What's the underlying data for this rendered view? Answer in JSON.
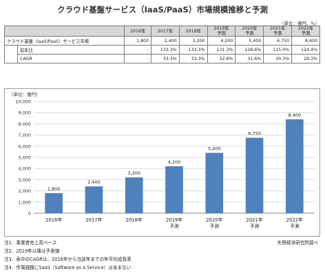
{
  "title": "クラウド基盤サービス（IaaS/PaaS）市場規模推移と予測",
  "units": "（単位：億円、%）",
  "table": {
    "header": [
      "",
      "",
      "2016年",
      "2017年",
      "2018年",
      "2019年\n予測",
      "2020年\n予測",
      "2021年\n予測",
      "2022年\n予測"
    ],
    "rows": [
      {
        "label": "クラウド基盤（IaaS/PaaS）サービス市場",
        "sub": "",
        "cells": [
          "1,800",
          "2,400",
          "3,200",
          "4,200",
          "5,400",
          "6,750",
          "8,400"
        ]
      },
      {
        "label": "",
        "sub": "前年比",
        "cells": [
          "-",
          "133.3%",
          "133.3%",
          "131.3%",
          "128.6%",
          "125.0%",
          "124.4%"
        ]
      },
      {
        "label": "",
        "sub": "CAGR",
        "cells": [
          "-",
          "33.3%",
          "33.3%",
          "32.6%",
          "31.6%",
          "30.3%",
          "29.3%"
        ]
      }
    ]
  },
  "chart_data": {
    "type": "bar",
    "title": "",
    "unit_label": "（単位：億円）",
    "categories": [
      "2016年",
      "2017年",
      "2018年",
      "2019年\n予測",
      "2020年\n予測",
      "2021年\n予測",
      "2022年\n予測"
    ],
    "values": [
      1800,
      2400,
      3200,
      4200,
      5400,
      6750,
      8400
    ],
    "value_labels": [
      "1,800",
      "2,400",
      "3,200",
      "4,200",
      "5,400",
      "6,750",
      "8,400"
    ],
    "ylim": [
      0,
      10000
    ],
    "yticks": [
      0,
      1000,
      2000,
      3000,
      4000,
      5000,
      6000,
      7000,
      8000,
      9000,
      10000
    ],
    "ytick_labels": [
      "0",
      "1,000",
      "2,000",
      "3,000",
      "4,000",
      "5,000",
      "6,000",
      "7,000",
      "8,000",
      "9,000",
      "10,000"
    ],
    "grid": true,
    "bar_color": "#4f81bd"
  },
  "notes": [
    "注1．事業者売上高ベース",
    "注2．2019年以降は予測値",
    "注3．表中のCAGRは、2016年から当該年までの年平均成長率",
    "注4．市場規模にSaaS（Software as a Service）は含まない"
  ],
  "source": "矢野経済研究所調べ"
}
